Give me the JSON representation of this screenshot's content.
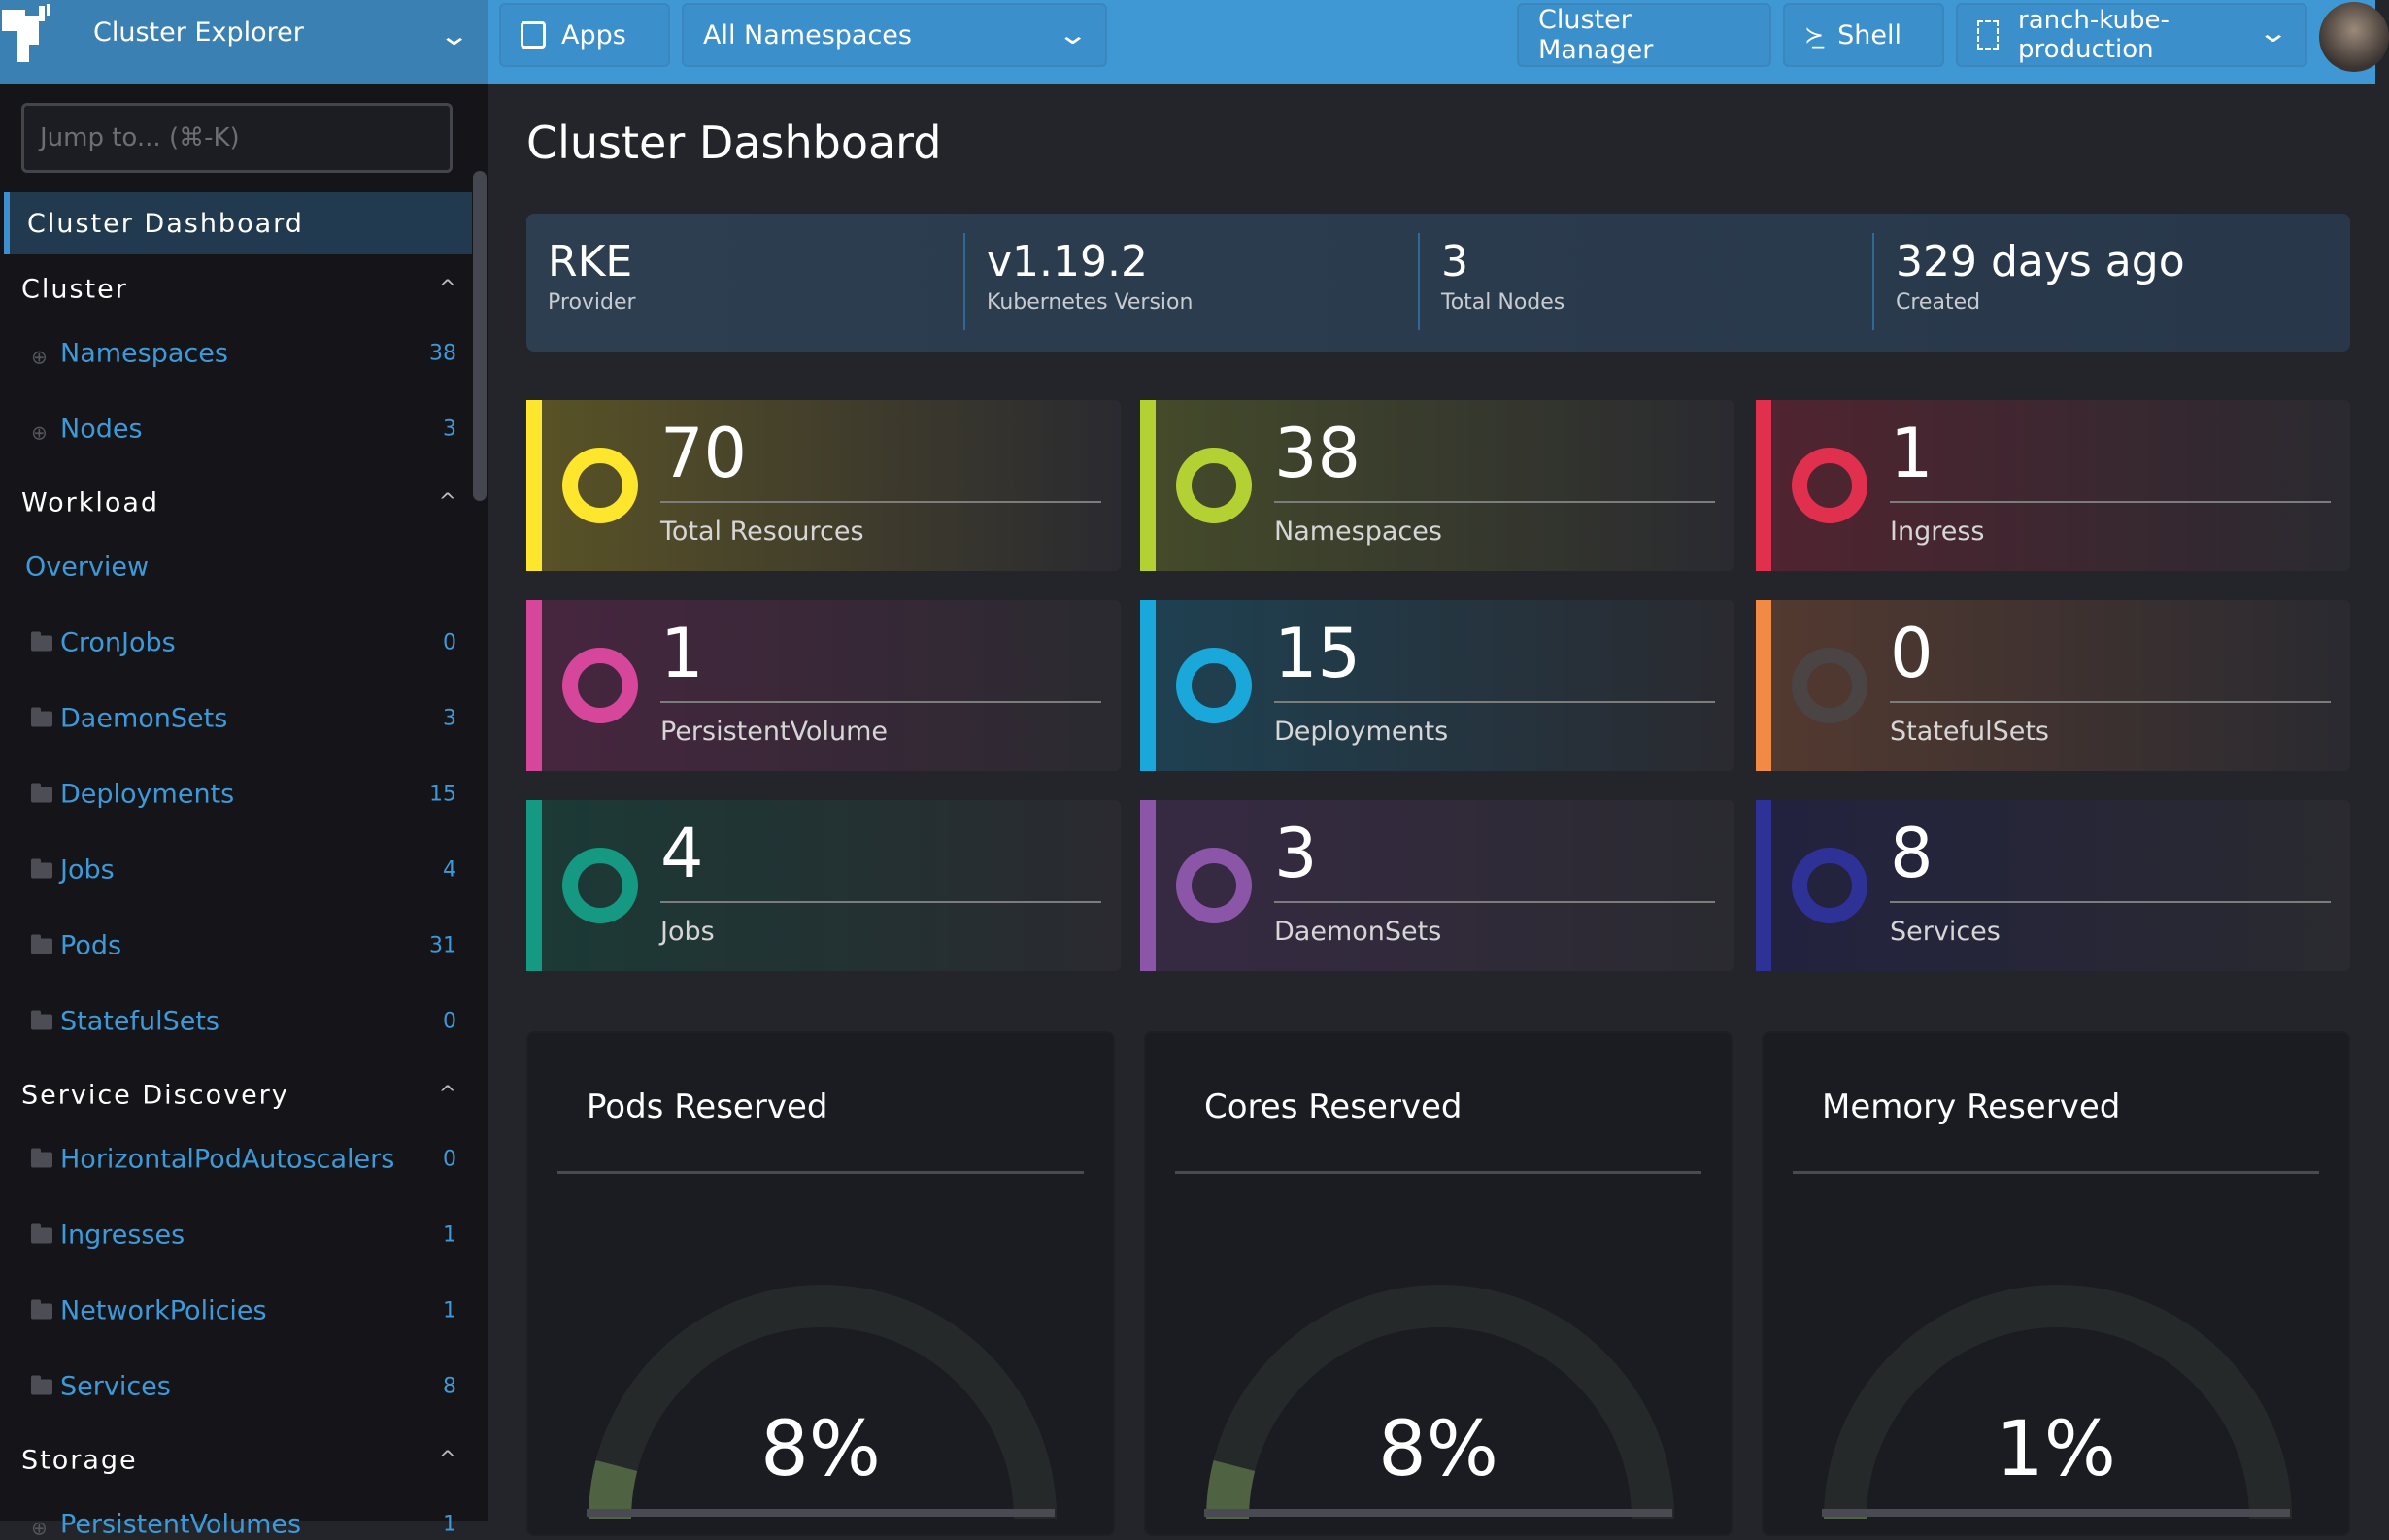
{
  "header": {
    "brand": "Cluster Explorer",
    "apps": "Apps",
    "namespace_filter": "All Namespaces",
    "cluster_manager": "Cluster Manager",
    "shell": "Shell",
    "cluster_line1": "ranch-kube-",
    "cluster_line2": "production"
  },
  "sidebar": {
    "search_placeholder": "Jump to... (⌘-K)",
    "active": "Cluster Dashboard",
    "sections": {
      "cluster": "Cluster",
      "workload": "Workload",
      "service_discovery": "Service Discovery",
      "storage": "Storage"
    },
    "items": [
      {
        "label": "Namespaces",
        "count": "38",
        "icon": "globe"
      },
      {
        "label": "Nodes",
        "count": "3",
        "icon": "globe"
      },
      {
        "label": "Overview",
        "count": null,
        "icon": null
      },
      {
        "label": "CronJobs",
        "count": "0",
        "icon": "folder"
      },
      {
        "label": "DaemonSets",
        "count": "3",
        "icon": "folder"
      },
      {
        "label": "Deployments",
        "count": "15",
        "icon": "folder"
      },
      {
        "label": "Jobs",
        "count": "4",
        "icon": "folder"
      },
      {
        "label": "Pods",
        "count": "31",
        "icon": "folder"
      },
      {
        "label": "StatefulSets",
        "count": "0",
        "icon": "folder"
      },
      {
        "label": "HorizontalPodAutoscalers",
        "count": "0",
        "icon": "folder"
      },
      {
        "label": "Ingresses",
        "count": "1",
        "icon": "folder"
      },
      {
        "label": "NetworkPolicies",
        "count": "1",
        "icon": "folder"
      },
      {
        "label": "Services",
        "count": "8",
        "icon": "folder"
      },
      {
        "label": "PersistentVolumes",
        "count": "1",
        "icon": "globe"
      }
    ]
  },
  "main": {
    "title": "Cluster Dashboard",
    "info": [
      {
        "value": "RKE",
        "label": "Provider"
      },
      {
        "value": "v1.19.2",
        "label": "Kubernetes Version"
      },
      {
        "value": "3",
        "label": "Total Nodes"
      },
      {
        "value": "329 days ago",
        "label": "Created"
      }
    ],
    "cards": [
      {
        "value": "70",
        "label": "Total Resources",
        "color": "#fde62b",
        "bg": "#5a5326"
      },
      {
        "value": "38",
        "label": "Namespaces",
        "color": "#b4d134",
        "bg": "#454b2a"
      },
      {
        "value": "1",
        "label": "Ingress",
        "color": "#e0304d",
        "bg": "#512430"
      },
      {
        "value": "1",
        "label": "PersistentVolume",
        "color": "#d6479b",
        "bg": "#47263f"
      },
      {
        "value": "15",
        "label": "Deployments",
        "color": "#1aa7d9",
        "bg": "#1e4152"
      },
      {
        "value": "0",
        "label": "StatefulSets",
        "color": "#4a4444",
        "bg": "#543a30",
        "bar": "#f08a44"
      },
      {
        "value": "4",
        "label": "Jobs",
        "color": "#159982",
        "bg": "#1b3a36"
      },
      {
        "value": "3",
        "label": "DaemonSets",
        "color": "#8c56a8",
        "bg": "#372a44"
      },
      {
        "value": "8",
        "label": "Services",
        "color": "#2e3296",
        "bg": "#22223f"
      }
    ],
    "gauges": [
      {
        "title": "Pods Reserved",
        "percent": 8,
        "label": "8%"
      },
      {
        "title": "Cores Reserved",
        "percent": 8,
        "label": "8%"
      },
      {
        "title": "Memory Reserved",
        "percent": 1,
        "label": "1%"
      }
    ]
  }
}
